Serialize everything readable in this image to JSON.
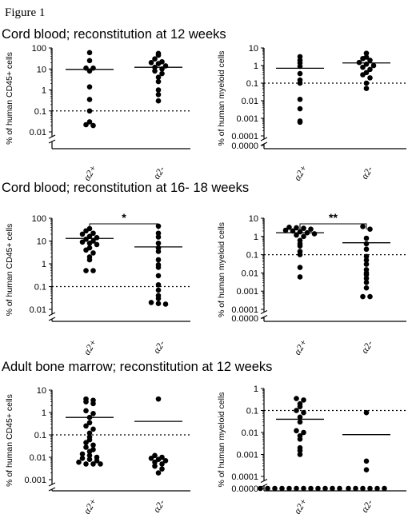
{
  "figure_label": "Figure 1",
  "sections": [
    "Cord blood; reconstitution at 12 weeks",
    "Cord blood; reconstitution at 16- 18 weeks",
    "Adult bone marrow; reconstitution at 12 weeks"
  ],
  "chart_data": [
    {
      "type": "scatter",
      "section": 0,
      "ylabel": "% of human CD45+ cells",
      "scale": "log",
      "yticks": [
        "0.01",
        "0.1",
        "1",
        "10",
        "100"
      ],
      "ytick_values": [
        0.01,
        0.1,
        1,
        10,
        100
      ],
      "axis_break": true,
      "categories": [
        "α2+",
        "α2-"
      ],
      "threshold": 0.1,
      "means": [
        9.5,
        12
      ],
      "series": [
        {
          "values": [
            60,
            25,
            11,
            11,
            8,
            1.4,
            0.35,
            0.1,
            0.03,
            0.022,
            0.02
          ]
        },
        {
          "values": [
            55,
            45,
            30,
            22,
            20,
            18,
            14,
            12,
            10,
            8,
            6,
            4,
            2.5,
            1,
            0.6,
            0.3
          ]
        }
      ]
    },
    {
      "type": "scatter",
      "section": 0,
      "ylabel": "% of human myeloid cells",
      "scale": "log",
      "yticks": [
        "0.0000",
        "0.0001",
        "0.001",
        "0.01",
        "0.1",
        "1",
        "10"
      ],
      "ytick_values": [
        0,
        0.0001,
        0.001,
        0.01,
        0.1,
        1,
        10
      ],
      "axis_break": true,
      "categories": [
        "α2+",
        "α2-"
      ],
      "threshold": 0.1,
      "means": [
        0.7,
        1.4
      ],
      "series": [
        {
          "values": [
            3.2,
            2,
            1.4,
            0.9,
            0.35,
            0.15,
            0.1,
            0.012,
            0.0035,
            0.0007,
            0.0006
          ]
        },
        {
          "values": [
            5,
            3,
            2.5,
            2,
            1.5,
            1.2,
            1,
            0.8,
            0.6,
            0.4,
            0.3,
            0.2,
            0.1,
            0.05
          ]
        }
      ]
    },
    {
      "type": "scatter",
      "section": 1,
      "ylabel": "% of human CD45+ cells",
      "scale": "log",
      "yticks": [
        "0.01",
        "0.1",
        "1",
        "10",
        "100"
      ],
      "ytick_values": [
        0.01,
        0.1,
        1,
        10,
        100
      ],
      "axis_break": true,
      "categories": [
        "α2+",
        "α2-"
      ],
      "threshold": 0.1,
      "means": [
        13,
        5.5
      ],
      "significance": "*",
      "series": [
        {
          "values": [
            35,
            28,
            22,
            20,
            16,
            14,
            12,
            10,
            9,
            8,
            7,
            5,
            4,
            3,
            2,
            1.5,
            0.5,
            0.5
          ]
        },
        {
          "values": [
            45,
            22,
            15,
            8,
            5,
            3.5,
            1.5,
            0.9,
            0.7,
            0.3,
            0.12,
            0.07,
            0.04,
            0.03,
            0.02,
            0.018,
            0.017
          ]
        }
      ]
    },
    {
      "type": "scatter",
      "section": 1,
      "ylabel": "% of human myeloid cells",
      "scale": "log",
      "yticks": [
        "0.0000",
        "0.0001",
        "0.001",
        "0.01",
        "0.1",
        "1",
        "10"
      ],
      "ytick_values": [
        0,
        0.0001,
        0.001,
        0.01,
        0.1,
        1,
        10
      ],
      "axis_break": true,
      "categories": [
        "α2+",
        "α2-"
      ],
      "threshold": 0.1,
      "means": [
        1.6,
        0.45
      ],
      "significance": "**",
      "series": [
        {
          "values": [
            3.2,
            3,
            2.8,
            2.5,
            2.2,
            2,
            1.8,
            1.6,
            1.4,
            1.2,
            1,
            0.6,
            0.4,
            0.3,
            0.15,
            0.1,
            0.02,
            0.006
          ]
        },
        {
          "values": [
            3.5,
            2.5,
            0.8,
            0.4,
            0.2,
            0.08,
            0.05,
            0.03,
            0.015,
            0.01,
            0.008,
            0.005,
            0.003,
            0.0015,
            0.0005,
            0.0005
          ]
        }
      ]
    },
    {
      "type": "scatter",
      "section": 2,
      "ylabel": "% of human CD45+ cells",
      "scale": "log",
      "yticks": [
        "0.001",
        "0.01",
        "0.1",
        "1",
        "10"
      ],
      "ytick_values": [
        0.001,
        0.01,
        0.1,
        1,
        10
      ],
      "axis_break": true,
      "categories": [
        "α2+",
        "α2-"
      ],
      "threshold": 0.1,
      "means": [
        0.6,
        0.4
      ],
      "series": [
        {
          "values": [
            4,
            3.5,
            3,
            2.5,
            1.2,
            0.9,
            0.6,
            0.35,
            0.25,
            0.18,
            0.12,
            0.08,
            0.06,
            0.045,
            0.035,
            0.028,
            0.022,
            0.018,
            0.014,
            0.012,
            0.01,
            0.009,
            0.008,
            0.007,
            0.006,
            0.005,
            0.005,
            0.005
          ]
        },
        {
          "values": [
            4,
            0.012,
            0.01,
            0.009,
            0.008,
            0.007,
            0.006,
            0.005,
            0.004,
            0.003,
            0.002
          ]
        }
      ]
    },
    {
      "type": "scatter",
      "section": 2,
      "ylabel": "% of human myeloid cells",
      "scale": "log",
      "yticks": [
        "0.0000",
        "0.0001",
        "0.001",
        "0.01",
        "0.1",
        "1"
      ],
      "ytick_values": [
        0,
        0.0001,
        0.001,
        0.01,
        0.1,
        1
      ],
      "axis_break": true,
      "categories": [
        "α2+",
        "α2-"
      ],
      "threshold": 0.1,
      "means": [
        0.04,
        0.008
      ],
      "series": [
        {
          "values": [
            0.35,
            0.3,
            0.2,
            0.15,
            0.1,
            0.08,
            0.05,
            0.03,
            0.012,
            0.01,
            0.007,
            0.005,
            0.002,
            0.0015,
            0.001,
            0,
            0,
            0,
            0,
            0,
            0,
            0,
            0,
            0,
            0,
            0,
            0
          ]
        },
        {
          "values": [
            0.08,
            0.0005,
            0.0002,
            0,
            0,
            0,
            0,
            0,
            0
          ]
        }
      ]
    }
  ]
}
